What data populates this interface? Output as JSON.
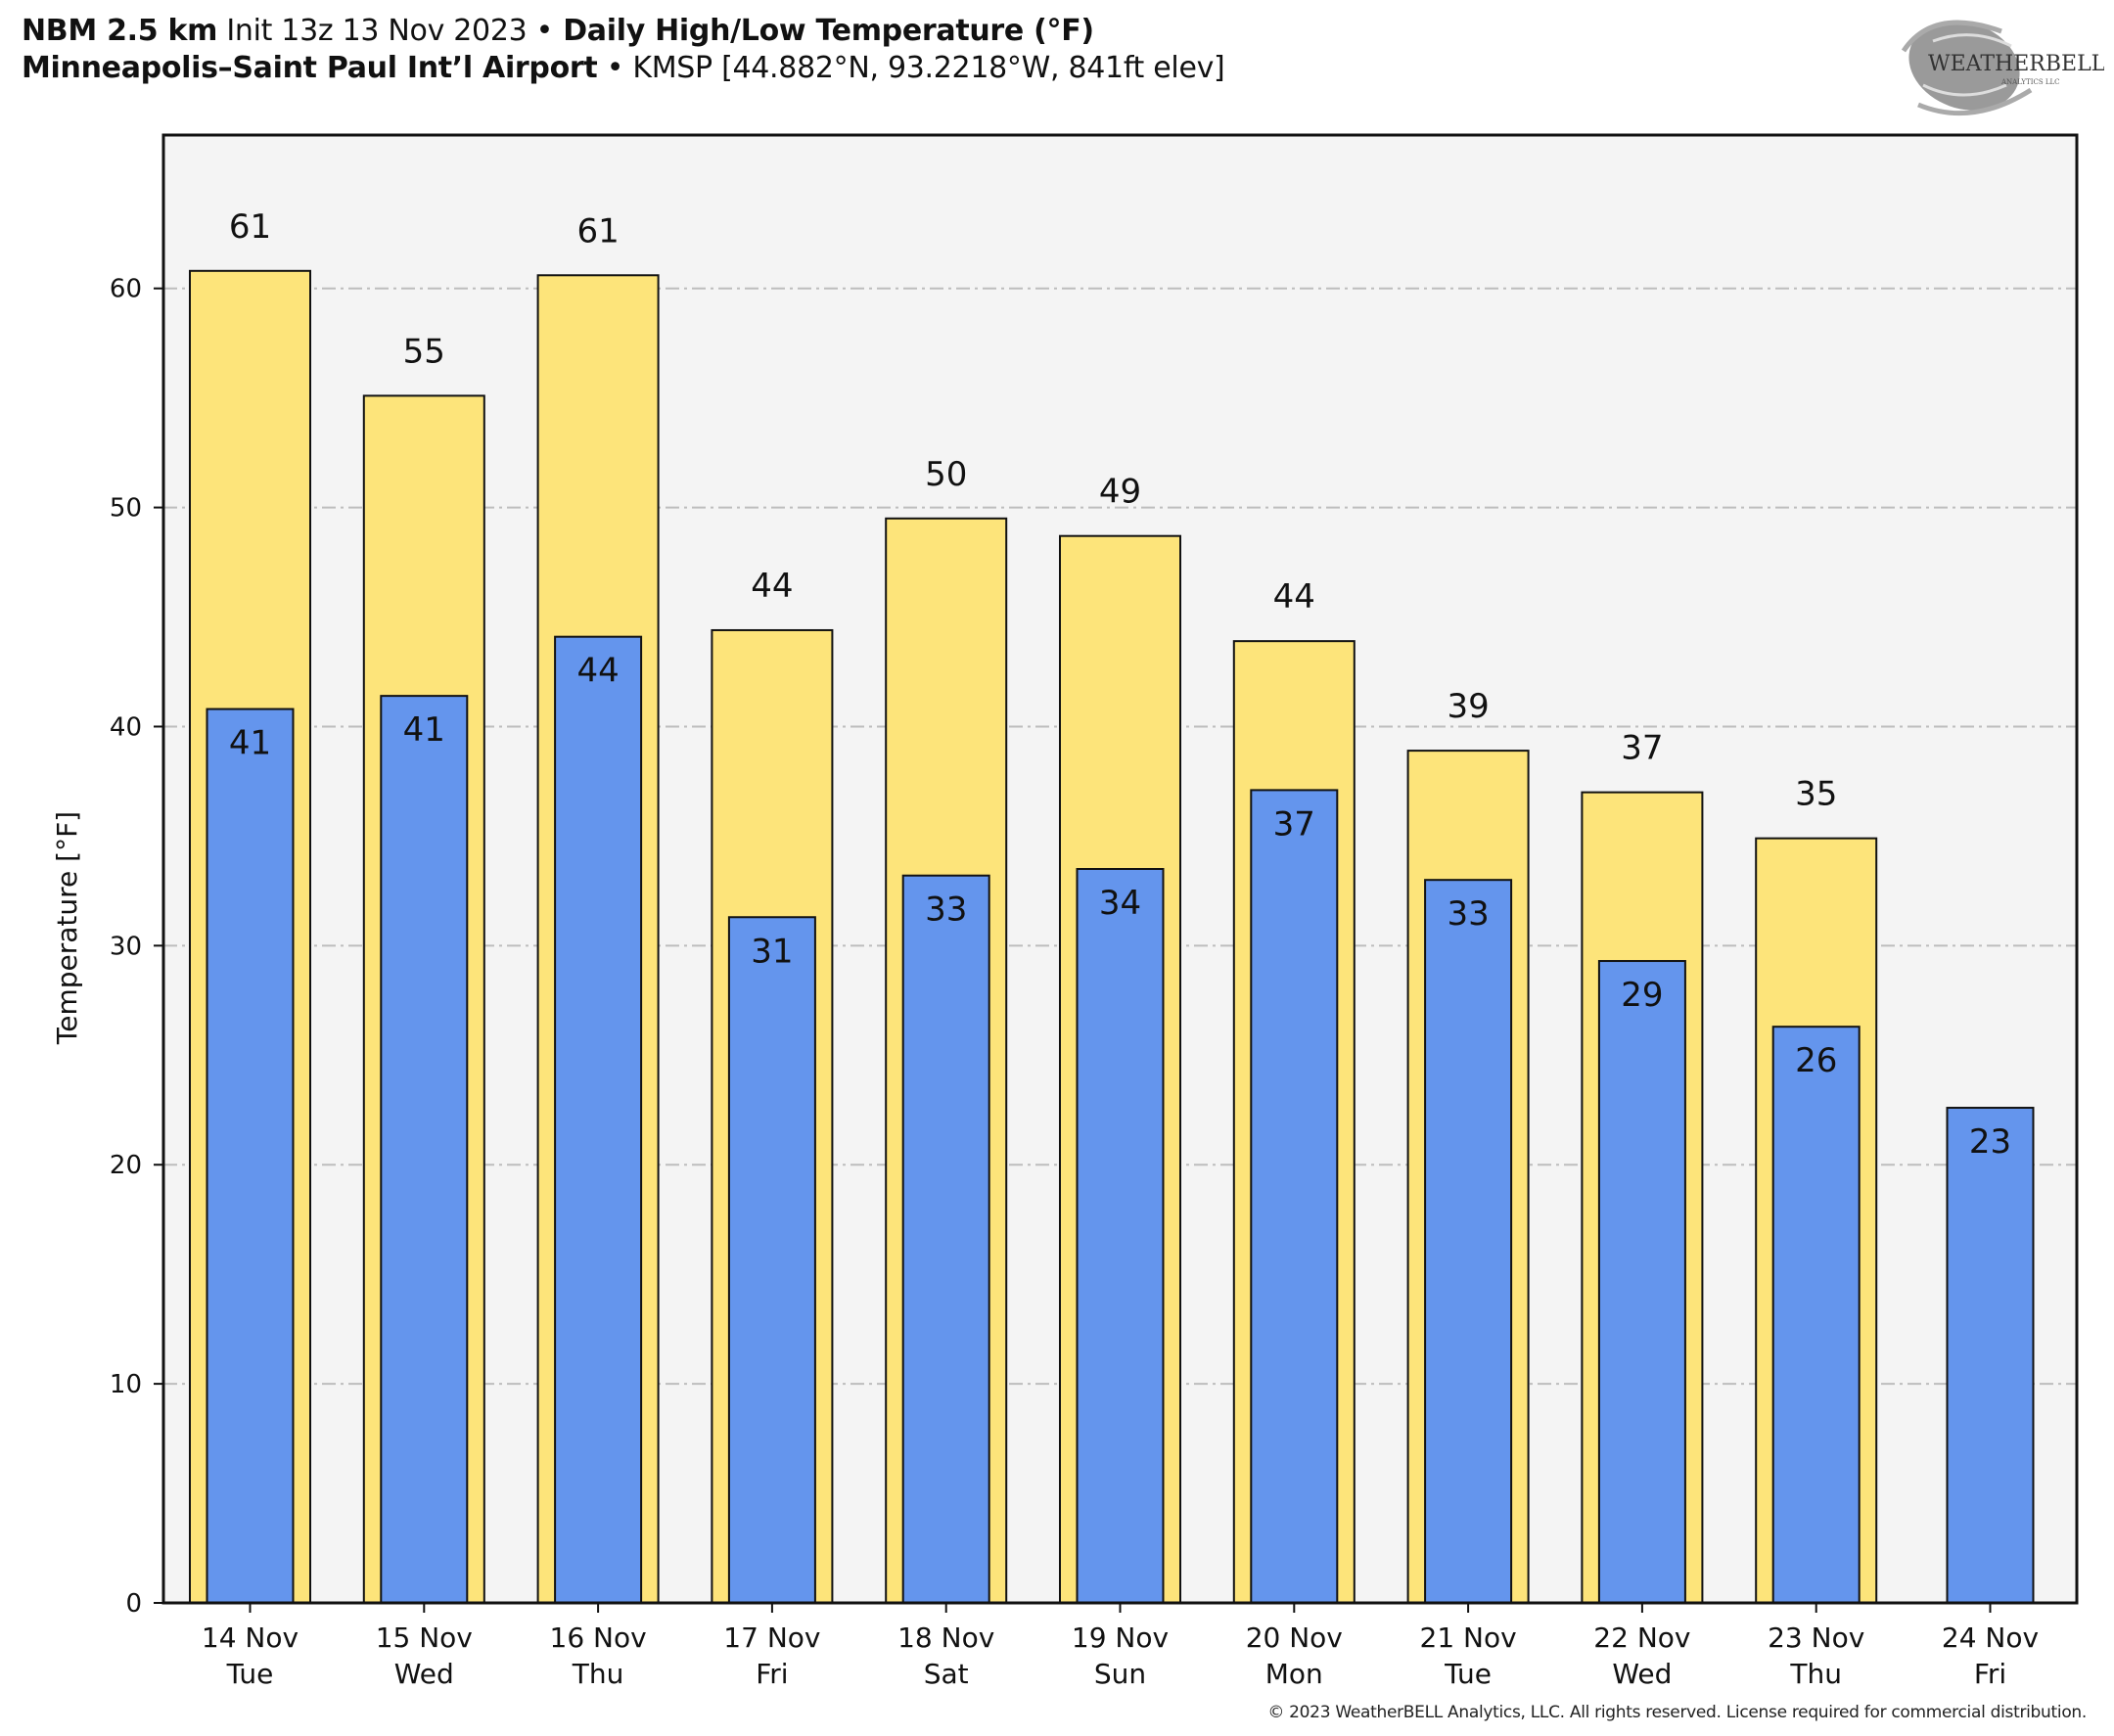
{
  "header": {
    "model_bold": "NBM 2.5 km",
    "init": " Init 13z 13 Nov 2023 ",
    "bullet": "•",
    "product_bold": " Daily High/Low Temperature (°F)",
    "station_bold": "Minneapolis–Saint Paul Int’l Airport",
    "station_meta": " KMSP [44.882°N, 93.2218°W, 841ft elev]"
  },
  "logo": {
    "name": "WeatherBELL",
    "main": "WEATHERBELL",
    "sub": "ANALYTICS LLC"
  },
  "footer": {
    "copyright": "© 2023 WeatherBELL Analytics, LLC. All rights reserved. License required for commercial distribution."
  },
  "colors": {
    "high": "#FDE47A",
    "low": "#6495ED",
    "plot_bg": "#F4F4F4",
    "grid": "#BDBDBD",
    "edge": "#111111"
  },
  "chart_data": {
    "type": "bar",
    "title": "Daily High/Low Temperature (°F)",
    "xlabel": "",
    "ylabel": "Temperature [°F]",
    "ylim": [
      0,
      67
    ],
    "yticks": [
      0,
      10,
      20,
      30,
      40,
      50,
      60
    ],
    "grid": true,
    "categories": [
      {
        "date": "14 Nov",
        "day": "Tue"
      },
      {
        "date": "15 Nov",
        "day": "Wed"
      },
      {
        "date": "16 Nov",
        "day": "Thu"
      },
      {
        "date": "17 Nov",
        "day": "Fri"
      },
      {
        "date": "18 Nov",
        "day": "Sat"
      },
      {
        "date": "19 Nov",
        "day": "Sun"
      },
      {
        "date": "20 Nov",
        "day": "Mon"
      },
      {
        "date": "21 Nov",
        "day": "Tue"
      },
      {
        "date": "22 Nov",
        "day": "Wed"
      },
      {
        "date": "23 Nov",
        "day": "Thu"
      },
      {
        "date": "24 Nov",
        "day": "Fri"
      }
    ],
    "series": [
      {
        "name": "High",
        "values": [
          60.8,
          55.1,
          60.6,
          44.4,
          49.5,
          48.7,
          43.9,
          38.9,
          37.0,
          34.9,
          null
        ],
        "labels": [
          "61",
          "55",
          "61",
          "44",
          "50",
          "49",
          "44",
          "39",
          "37",
          "35",
          null
        ]
      },
      {
        "name": "Low",
        "values": [
          40.8,
          41.4,
          44.1,
          31.3,
          33.2,
          33.5,
          37.1,
          33.0,
          29.3,
          26.3,
          22.6
        ],
        "labels": [
          "41",
          "41",
          "44",
          "31",
          "33",
          "34",
          "37",
          "33",
          "29",
          "26",
          "23"
        ]
      }
    ]
  }
}
